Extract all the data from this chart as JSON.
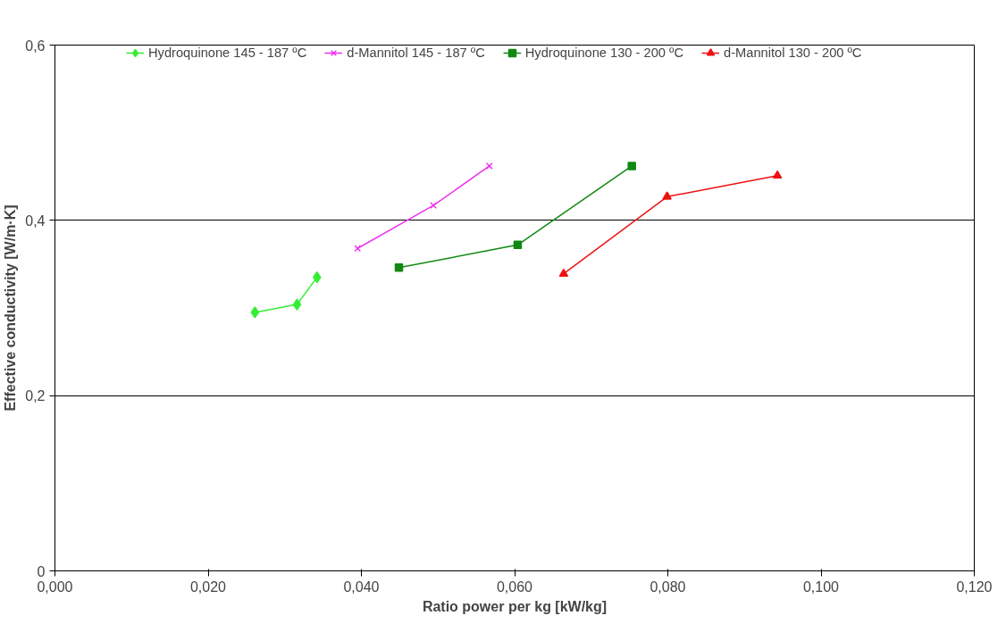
{
  "chart_data": {
    "type": "line",
    "xlabel": "Ratio power per kg [kW/kg]",
    "ylabel": "Effective conductivity [W/m·K]",
    "xlim": [
      0,
      0.12
    ],
    "ylim": [
      0,
      0.6
    ],
    "xticks": [
      {
        "value": 0,
        "label": "0,000"
      },
      {
        "value": 0.02,
        "label": "0,020"
      },
      {
        "value": 0.04,
        "label": "0,040"
      },
      {
        "value": 0.06,
        "label": "0,060"
      },
      {
        "value": 0.08,
        "label": "0,080"
      },
      {
        "value": 0.1,
        "label": "0,100"
      },
      {
        "value": 0.12,
        "label": "0,120"
      }
    ],
    "yticks": [
      0,
      {
        "value": 0.2,
        "label": "0,2"
      },
      {
        "value": 0.4,
        "label": "0,4"
      },
      {
        "value": 0.6,
        "label": "0,6"
      }
    ],
    "grid": "y",
    "legend": "top",
    "line_style": "solid",
    "series": [
      {
        "name": "Hydroquinone 145 - 187 ºC",
        "color": "#33ee33",
        "marker": "diamond",
        "x": [
          0.0261,
          0.0316,
          0.0342
        ],
        "values": [
          0.295,
          0.304,
          0.335
        ]
      },
      {
        "name": "d-Mannitol 145 - 187 ºC",
        "color": "#ee33ee",
        "marker": "cross",
        "x": [
          0.0395,
          0.0494,
          0.0567
        ],
        "values": [
          0.368,
          0.417,
          0.462
        ]
      },
      {
        "name": "Hydroquinone 130 - 200 ºC",
        "color": "#118811",
        "marker": "square",
        "x": [
          0.0449,
          0.0604,
          0.0753
        ],
        "values": [
          0.346,
          0.372,
          0.462
        ]
      },
      {
        "name": "d-Mannitol 130 - 200 ºC",
        "color": "#ee1111",
        "marker": "triangle",
        "x": [
          0.0664,
          0.0799,
          0.0943
        ],
        "values": [
          0.339,
          0.427,
          0.451
        ]
      }
    ]
  }
}
